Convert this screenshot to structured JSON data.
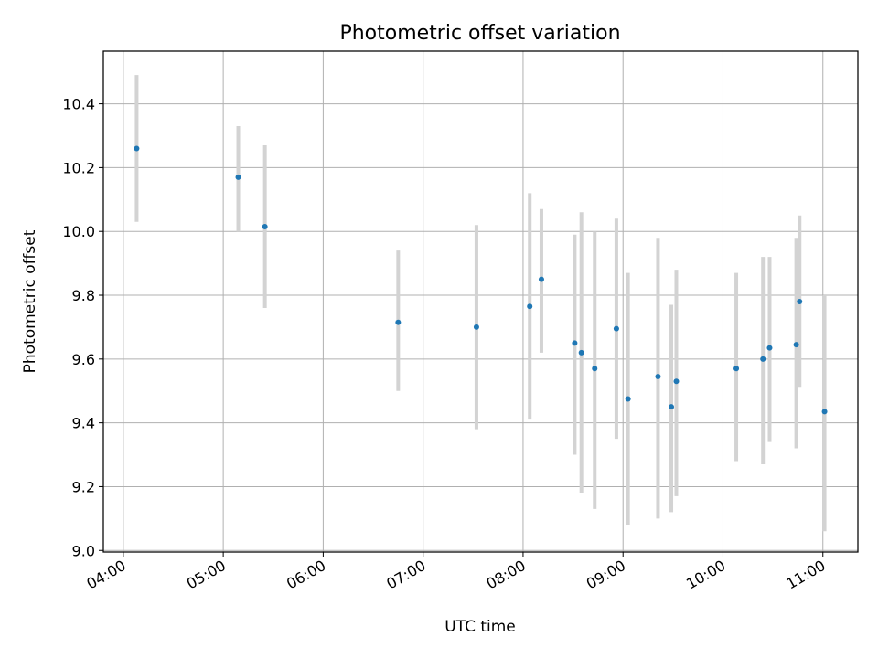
{
  "chart_data": {
    "type": "scatter",
    "title": "Photometric offset variation",
    "xlabel": "UTC time",
    "ylabel": "Photometric offset",
    "xlim": [
      "03:48",
      "11:21"
    ],
    "ylim": [
      8.995,
      10.565
    ],
    "x_ticks": [
      "04:00",
      "05:00",
      "06:00",
      "07:00",
      "08:00",
      "09:00",
      "10:00",
      "11:00"
    ],
    "y_ticks": [
      "9.0",
      "9.2",
      "9.4",
      "9.6",
      "9.8",
      "10.0",
      "10.2",
      "10.4"
    ],
    "grid": true,
    "marker_color": "#1f77b4",
    "errorbar_color": "#d3d3d3",
    "points": [
      {
        "x": "04:08",
        "y": 10.26,
        "err_low": 10.03,
        "err_high": 10.49
      },
      {
        "x": "05:09",
        "y": 10.17,
        "err_low": 10.0,
        "err_high": 10.33
      },
      {
        "x": "05:25",
        "y": 10.015,
        "err_low": 9.76,
        "err_high": 10.27
      },
      {
        "x": "06:45",
        "y": 9.715,
        "err_low": 9.5,
        "err_high": 9.94
      },
      {
        "x": "07:32",
        "y": 9.7,
        "err_low": 9.38,
        "err_high": 10.02
      },
      {
        "x": "08:04",
        "y": 9.765,
        "err_low": 9.41,
        "err_high": 10.12
      },
      {
        "x": "08:11",
        "y": 9.85,
        "err_low": 9.62,
        "err_high": 10.07
      },
      {
        "x": "08:31",
        "y": 9.65,
        "err_low": 9.3,
        "err_high": 9.99
      },
      {
        "x": "08:35",
        "y": 9.62,
        "err_low": 9.18,
        "err_high": 10.06
      },
      {
        "x": "08:43",
        "y": 9.57,
        "err_low": 9.13,
        "err_high": 10.0
      },
      {
        "x": "08:56",
        "y": 9.695,
        "err_low": 9.35,
        "err_high": 10.04
      },
      {
        "x": "09:03",
        "y": 9.475,
        "err_low": 9.08,
        "err_high": 9.87
      },
      {
        "x": "09:21",
        "y": 9.545,
        "err_low": 9.1,
        "err_high": 9.98
      },
      {
        "x": "09:29",
        "y": 9.45,
        "err_low": 9.12,
        "err_high": 9.77
      },
      {
        "x": "09:32",
        "y": 9.53,
        "err_low": 9.17,
        "err_high": 9.88
      },
      {
        "x": "10:08",
        "y": 9.57,
        "err_low": 9.28,
        "err_high": 9.87
      },
      {
        "x": "10:24",
        "y": 9.6,
        "err_low": 9.27,
        "err_high": 9.92
      },
      {
        "x": "10:28",
        "y": 9.635,
        "err_low": 9.34,
        "err_high": 9.92
      },
      {
        "x": "10:44",
        "y": 9.645,
        "err_low": 9.32,
        "err_high": 9.98
      },
      {
        "x": "10:46",
        "y": 9.78,
        "err_low": 9.51,
        "err_high": 10.05
      },
      {
        "x": "11:01",
        "y": 9.435,
        "err_low": 9.06,
        "err_high": 9.8
      }
    ]
  }
}
